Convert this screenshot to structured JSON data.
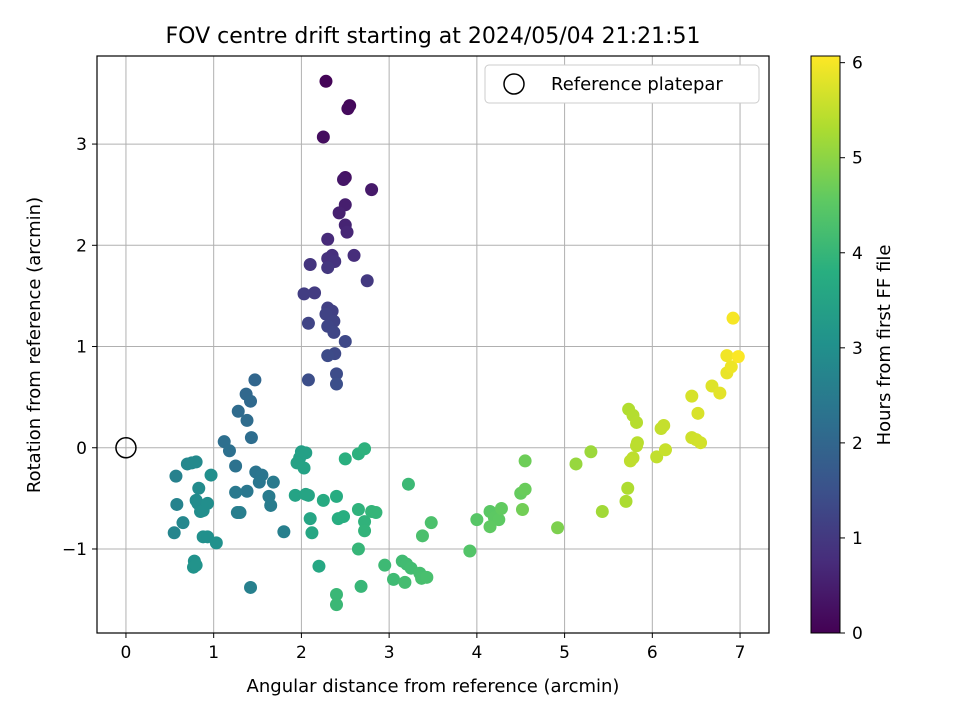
{
  "chart_data": {
    "type": "scatter",
    "title": "FOV centre drift starting at 2024/05/04 21:21:51",
    "xlabel": "Angular distance from reference (arcmin)",
    "ylabel": "Rotation from reference (arcmin)",
    "xlim": [
      -0.33,
      7.33
    ],
    "ylim": [
      -1.83,
      3.87
    ],
    "xticks": [
      0,
      1,
      2,
      3,
      4,
      5,
      6,
      7
    ],
    "yticks": [
      -1,
      0,
      1,
      2,
      3
    ],
    "xtick_labels": [
      "0",
      "1",
      "2",
      "3",
      "4",
      "5",
      "6",
      "7"
    ],
    "ytick_labels": [
      "−1",
      "0",
      "1",
      "2",
      "3"
    ],
    "grid": true,
    "legend": {
      "position": "top-right",
      "entries": [
        "Reference platepar"
      ]
    },
    "colorbar": {
      "label": "Hours from first FF file",
      "colormap": "viridis",
      "range": [
        0,
        6.07
      ],
      "ticks": [
        0,
        1,
        2,
        3,
        4,
        5,
        6
      ],
      "tick_labels": [
        "0",
        "1",
        "2",
        "3",
        "4",
        "5",
        "6"
      ]
    },
    "reference_point": {
      "x": 0,
      "y": 0
    },
    "series": [
      {
        "points": [
          [
            2.28,
            3.62,
            0.05
          ],
          [
            2.55,
            3.38,
            0.12
          ],
          [
            2.53,
            3.35,
            0.16
          ],
          [
            2.25,
            3.07,
            0.22
          ],
          [
            2.5,
            2.67,
            0.3
          ],
          [
            2.48,
            2.65,
            0.36
          ],
          [
            2.8,
            2.55,
            0.43
          ],
          [
            2.5,
            2.4,
            0.5
          ],
          [
            2.43,
            2.32,
            0.55
          ],
          [
            2.5,
            2.2,
            0.6
          ],
          [
            2.52,
            2.13,
            0.66
          ],
          [
            2.3,
            2.06,
            0.72
          ],
          [
            2.6,
            1.9,
            0.78
          ],
          [
            2.35,
            1.9,
            0.82
          ],
          [
            2.3,
            1.87,
            0.85
          ],
          [
            2.38,
            1.84,
            0.88
          ],
          [
            2.1,
            1.81,
            0.92
          ],
          [
            2.3,
            1.78,
            0.96
          ],
          [
            2.75,
            1.65,
            1.0
          ],
          [
            2.15,
            1.53,
            1.04
          ],
          [
            2.03,
            1.52,
            1.08
          ],
          [
            2.3,
            1.38,
            1.12
          ],
          [
            2.35,
            1.35,
            1.15
          ],
          [
            2.28,
            1.32,
            1.18
          ],
          [
            2.37,
            1.25,
            1.2
          ],
          [
            2.08,
            1.23,
            1.23
          ],
          [
            2.3,
            1.2,
            1.26
          ],
          [
            2.37,
            1.14,
            1.28
          ],
          [
            2.5,
            1.05,
            1.31
          ],
          [
            2.38,
            0.93,
            1.34
          ],
          [
            2.3,
            0.91,
            1.37
          ],
          [
            2.4,
            0.73,
            1.4
          ],
          [
            2.08,
            0.67,
            1.43
          ],
          [
            2.4,
            0.63,
            1.46
          ],
          [
            1.47,
            0.67,
            2.0
          ],
          [
            1.37,
            0.53,
            2.03
          ],
          [
            1.42,
            0.46,
            2.06
          ],
          [
            1.28,
            0.36,
            2.1
          ],
          [
            1.38,
            0.27,
            2.13
          ],
          [
            1.43,
            0.1,
            2.16
          ],
          [
            1.12,
            0.06,
            2.2
          ],
          [
            1.18,
            -0.03,
            2.24
          ],
          [
            1.25,
            -0.18,
            2.28
          ],
          [
            1.48,
            -0.24,
            2.32
          ],
          [
            1.55,
            -0.27,
            2.35
          ],
          [
            1.52,
            -0.34,
            2.38
          ],
          [
            1.38,
            -0.43,
            2.41
          ],
          [
            1.25,
            -0.44,
            2.44
          ],
          [
            1.68,
            -0.34,
            2.47
          ],
          [
            1.63,
            -0.48,
            2.5
          ],
          [
            1.65,
            -0.57,
            2.52
          ],
          [
            1.27,
            -0.64,
            2.55
          ],
          [
            1.3,
            -0.64,
            2.58
          ],
          [
            1.8,
            -0.83,
            2.6
          ],
          [
            1.42,
            -1.38,
            2.62
          ],
          [
            0.57,
            -0.28,
            2.65
          ],
          [
            0.58,
            -0.56,
            2.7
          ],
          [
            0.55,
            -0.84,
            2.75
          ],
          [
            0.65,
            -0.74,
            2.78
          ],
          [
            0.7,
            -0.16,
            2.8
          ],
          [
            0.75,
            -0.15,
            2.82
          ],
          [
            0.8,
            -0.14,
            2.85
          ],
          [
            0.83,
            -0.4,
            2.88
          ],
          [
            0.8,
            -0.52,
            2.9
          ],
          [
            0.82,
            -0.55,
            2.92
          ],
          [
            0.85,
            -0.63,
            2.94
          ],
          [
            0.88,
            -0.62,
            2.96
          ],
          [
            0.93,
            -0.55,
            2.97
          ],
          [
            0.97,
            -0.27,
            2.98
          ],
          [
            0.88,
            -0.88,
            3.0
          ],
          [
            0.93,
            -0.88,
            3.02
          ],
          [
            1.03,
            -0.94,
            3.04
          ],
          [
            0.78,
            -1.12,
            3.06
          ],
          [
            0.77,
            -1.18,
            3.08
          ],
          [
            0.8,
            -1.16,
            3.1
          ],
          [
            2.0,
            -0.04,
            3.4
          ],
          [
            2.05,
            -0.05,
            3.42
          ],
          [
            1.98,
            -0.1,
            3.44
          ],
          [
            1.95,
            -0.15,
            3.46
          ],
          [
            2.03,
            -0.2,
            3.48
          ],
          [
            1.93,
            -0.47,
            3.5
          ],
          [
            2.05,
            -0.46,
            3.52
          ],
          [
            2.08,
            -0.47,
            3.54
          ],
          [
            2.1,
            -0.7,
            3.56
          ],
          [
            2.12,
            -0.84,
            3.58
          ],
          [
            2.2,
            -1.17,
            3.6
          ],
          [
            2.25,
            -0.52,
            3.7
          ],
          [
            2.4,
            -0.48,
            3.73
          ],
          [
            2.42,
            -0.7,
            3.76
          ],
          [
            2.48,
            -0.68,
            3.79
          ],
          [
            2.5,
            -0.11,
            3.82
          ],
          [
            2.65,
            -0.06,
            3.85
          ],
          [
            2.72,
            -0.01,
            3.88
          ],
          [
            2.65,
            -0.61,
            3.9
          ],
          [
            2.72,
            -0.73,
            3.92
          ],
          [
            2.72,
            -0.82,
            3.94
          ],
          [
            2.8,
            -0.63,
            3.96
          ],
          [
            2.85,
            -0.64,
            3.98
          ],
          [
            2.65,
            -1.0,
            4.0
          ],
          [
            2.68,
            -1.37,
            4.02
          ],
          [
            2.4,
            -1.45,
            4.04
          ],
          [
            2.4,
            -1.55,
            4.06
          ],
          [
            3.22,
            -0.36,
            4.08
          ],
          [
            2.95,
            -1.16,
            4.1
          ],
          [
            3.05,
            -1.3,
            4.12
          ],
          [
            3.15,
            -1.12,
            4.14
          ],
          [
            3.2,
            -1.15,
            4.16
          ],
          [
            3.25,
            -1.19,
            4.18
          ],
          [
            3.18,
            -1.33,
            4.2
          ],
          [
            3.35,
            -1.24,
            4.22
          ],
          [
            3.37,
            -1.29,
            4.24
          ],
          [
            3.43,
            -1.28,
            4.26
          ],
          [
            3.38,
            -0.87,
            4.28
          ],
          [
            3.48,
            -0.74,
            4.3
          ],
          [
            3.92,
            -1.02,
            4.4
          ],
          [
            4.0,
            -0.71,
            4.45
          ],
          [
            4.15,
            -0.63,
            4.5
          ],
          [
            4.2,
            -0.69,
            4.52
          ],
          [
            4.25,
            -0.71,
            4.54
          ],
          [
            4.15,
            -0.78,
            4.56
          ],
          [
            4.28,
            -0.6,
            4.58
          ],
          [
            4.5,
            -0.45,
            4.62
          ],
          [
            4.55,
            -0.41,
            4.66
          ],
          [
            4.55,
            -0.13,
            4.7
          ],
          [
            4.52,
            -0.61,
            4.74
          ],
          [
            4.92,
            -0.79,
            4.85
          ],
          [
            5.13,
            -0.16,
            5.1
          ],
          [
            5.3,
            -0.04,
            5.15
          ],
          [
            5.43,
            -0.63,
            5.2
          ],
          [
            5.7,
            -0.53,
            5.3
          ],
          [
            5.72,
            -0.4,
            5.32
          ],
          [
            5.73,
            0.38,
            5.35
          ],
          [
            5.78,
            0.32,
            5.38
          ],
          [
            5.82,
            0.25,
            5.4
          ],
          [
            5.83,
            0.05,
            5.42
          ],
          [
            5.82,
            0.02,
            5.44
          ],
          [
            5.78,
            -0.1,
            5.46
          ],
          [
            5.75,
            -0.13,
            5.48
          ],
          [
            6.05,
            -0.09,
            5.5
          ],
          [
            6.1,
            0.19,
            5.52
          ],
          [
            6.13,
            0.22,
            5.54
          ],
          [
            6.15,
            -0.02,
            5.56
          ],
          [
            6.45,
            0.1,
            5.62
          ],
          [
            6.5,
            0.08,
            5.64
          ],
          [
            6.55,
            0.05,
            5.66
          ],
          [
            6.45,
            0.51,
            5.7
          ],
          [
            6.52,
            0.34,
            5.72
          ],
          [
            6.68,
            0.61,
            5.78
          ],
          [
            6.77,
            0.54,
            5.82
          ],
          [
            6.85,
            0.74,
            5.88
          ],
          [
            6.9,
            0.8,
            5.92
          ],
          [
            6.85,
            0.91,
            5.96
          ],
          [
            6.92,
            1.28,
            6.0
          ],
          [
            6.98,
            0.9,
            6.05
          ]
        ]
      }
    ]
  }
}
